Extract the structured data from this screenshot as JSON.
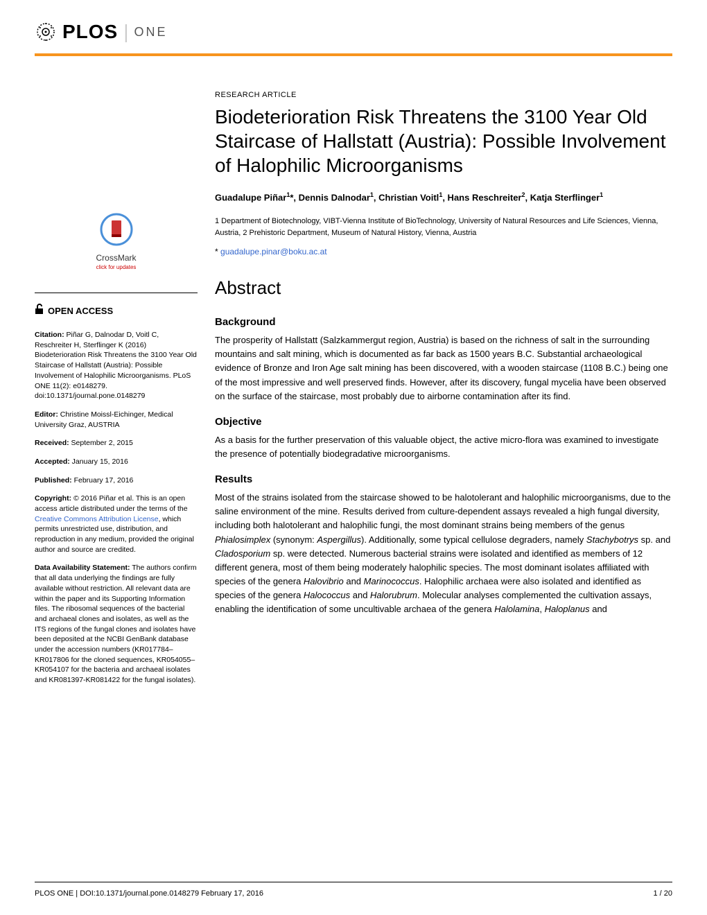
{
  "journal": {
    "logo_main": "PLOS",
    "logo_sub": "ONE",
    "accent_color": "#f7941e"
  },
  "article_type": "RESEARCH ARTICLE",
  "title": "Biodeterioration Risk Threatens the 3100 Year Old Staircase of Hallstatt (Austria): Possible Involvement of Halophilic Microorganisms",
  "authors_html": "Guadalupe Piñar<sup>1</sup>*, Dennis Dalnodar<sup>1</sup>, Christian Voitl<sup>1</sup>, Hans Reschreiter<sup>2</sup>, Katja Sterflinger<sup>1</sup>",
  "affiliations": "1 Department of Biotechnology, VIBT-Vienna Institute of BioTechnology, University of Natural Resources and Life Sciences, Vienna, Austria, 2 Prehistoric Department, Museum of Natural History, Vienna, Austria",
  "corresponding_prefix": "* ",
  "corresponding_email": "guadalupe.pinar@boku.ac.at",
  "abstract_heading": "Abstract",
  "sections": {
    "background": {
      "heading": "Background",
      "body": "The prosperity of Hallstatt (Salzkammergut region, Austria) is based on the richness of salt in the surrounding mountains and salt mining, which is documented as far back as 1500 years B.C. Substantial archaeological evidence of Bronze and Iron Age salt mining has been discovered, with a wooden staircase (1108 B.C.) being one of the most impressive and well preserved finds. However, after its discovery, fungal mycelia have been observed on the surface of the staircase, most probably due to airborne contamination after its find."
    },
    "objective": {
      "heading": "Objective",
      "body": "As a basis for the further preservation of this valuable object, the active micro-flora was examined to investigate the presence of potentially biodegradative microorganisms."
    },
    "results": {
      "heading": "Results",
      "body_html": "Most of the strains isolated from the staircase showed to be halotolerant and halophilic microorganisms, due to the saline environment of the mine. Results derived from culture-dependent assays revealed a high fungal diversity, including both halotolerant and halophilic fungi, the most dominant strains being members of the genus <span class='italic'>Phialosimplex</span> (synonym: <span class='italic'>Aspergillus</span>). Additionally, some typical cellulose degraders, namely <span class='italic'>Stachybotrys</span> sp. and <span class='italic'>Cladosporium</span> sp. were detected. Numerous bacterial strains were isolated and identified as members of 12 different genera, most of them being moderately halophilic species. The most dominant isolates affiliated with species of the genera <span class='italic'>Halovibrio</span> and <span class='italic'>Marinococcus</span>. Halophilic archaea were also isolated and identified as species of the genera <span class='italic'>Halococcus</span> and <span class='italic'>Halorubrum</span>. Molecular analyses complemented the cultivation assays, enabling the identification of some uncultivable archaea of the genera <span class='italic'>Halolamina</span>, <span class='italic'>Haloplanus</span> and"
    }
  },
  "sidebar": {
    "crossmark_label": "CrossMark",
    "crossmark_sub": "click for updates",
    "open_access_label": "OPEN ACCESS",
    "citation_label": "Citation:",
    "citation_text": " Piñar G, Dalnodar D, Voitl C, Reschreiter H, Sterflinger K (2016) Biodeterioration Risk Threatens the 3100 Year Old Staircase of Hallstatt (Austria): Possible Involvement of Halophilic Microorganisms. PLoS ONE 11(2): e0148279. doi:10.1371/journal.pone.0148279",
    "editor_label": "Editor:",
    "editor_text": " Christine Moissl-Eichinger, Medical University Graz, AUSTRIA",
    "received_label": "Received:",
    "received_text": " September 2, 2015",
    "accepted_label": "Accepted:",
    "accepted_text": " January 15, 2016",
    "published_label": "Published:",
    "published_text": " February 17, 2016",
    "copyright_label": "Copyright:",
    "copyright_text_pre": " © 2016 Piñar et al. This is an open access article distributed under the terms of the ",
    "cc_link": "Creative Commons Attribution License",
    "copyright_text_post": ", which permits unrestricted use, distribution, and reproduction in any medium, provided the original author and source are credited.",
    "data_label": "Data Availability Statement:",
    "data_text": " The authors confirm that all data underlying the findings are fully available without restriction. All relevant data are within the paper and its Supporting Information files. The ribosomal sequences of the bacterial and archaeal clones and isolates, as well as the ITS regions of the fungal clones and isolates have been deposited at the NCBI GenBank database under the accession numbers (KR017784–KR017806 for the cloned sequences, KR054055–KR054107 for the bacteria and archaeal isolates and KR081397-KR081422 for the fungal isolates)."
  },
  "footer": {
    "left": "PLOS ONE | DOI:10.1371/journal.pone.0148279    February 17, 2016",
    "right": "1 / 20"
  }
}
